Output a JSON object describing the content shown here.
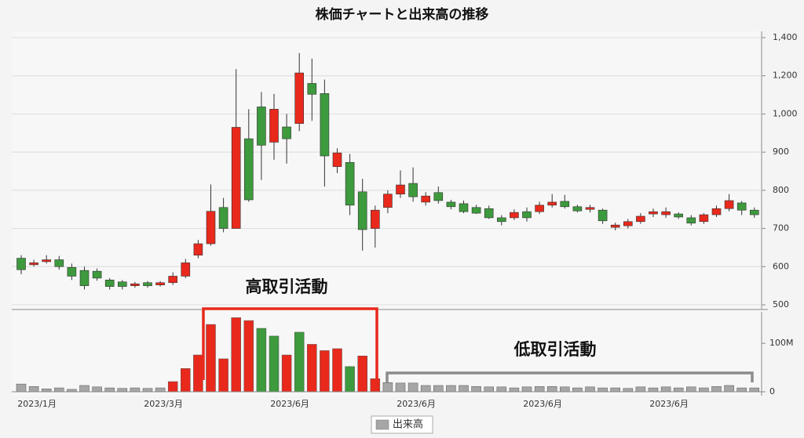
{
  "chart_data": [
    {
      "type": "candlestick",
      "title": "株価チャートと出来高の推移",
      "categories": [
        null,
        "2023/1月",
        null,
        null,
        null,
        null,
        null,
        null,
        null,
        null,
        null,
        "2023/3月",
        null,
        null,
        null,
        null,
        null,
        null,
        null,
        null,
        null,
        "2023/6月",
        null,
        null,
        null,
        null,
        null,
        null,
        null,
        null,
        null,
        "2023/6月",
        null,
        null,
        null,
        null,
        null,
        null,
        null,
        null,
        null,
        "2023/6月",
        null,
        null,
        null,
        null,
        null,
        null,
        null,
        null,
        null,
        "2023/6月",
        null,
        null,
        null,
        null,
        null,
        null,
        null
      ],
      "open": [
        622,
        605,
        613,
        618,
        598,
        590,
        588,
        565,
        560,
        550,
        558,
        552,
        558,
        575,
        630,
        660,
        755,
        700,
        935,
        1037,
        926,
        966,
        975,
        1160,
        1107,
        862,
        873,
        796,
        700,
        755,
        790,
        818,
        769,
        794,
        769,
        765,
        755,
        752,
        728,
        728,
        744,
        744,
        761,
        771,
        757,
        750,
        748,
        703,
        707,
        718,
        738,
        736,
        738,
        728,
        718,
        736,
        752,
        767,
        748
      ],
      "high": [
        630,
        618,
        630,
        628,
        608,
        600,
        595,
        570,
        565,
        560,
        562,
        562,
        585,
        620,
        670,
        815,
        780,
        1235,
        1025,
        1115,
        1105,
        1000,
        1319,
        1290,
        1180,
        910,
        895,
        830,
        760,
        800,
        852,
        860,
        795,
        810,
        775,
        773,
        762,
        760,
        735,
        750,
        755,
        770,
        790,
        788,
        762,
        762,
        752,
        715,
        725,
        740,
        752,
        755,
        742,
        735,
        740,
        760,
        790,
        772,
        755
      ],
      "low": [
        580,
        600,
        608,
        592,
        565,
        540,
        563,
        540,
        540,
        545,
        545,
        548,
        552,
        570,
        622,
        655,
        690,
        700,
        770,
        827,
        880,
        870,
        955,
        982,
        810,
        845,
        735,
        642,
        650,
        740,
        780,
        770,
        760,
        765,
        750,
        740,
        738,
        725,
        708,
        722,
        718,
        738,
        755,
        752,
        742,
        742,
        712,
        695,
        700,
        712,
        730,
        728,
        725,
        708,
        712,
        730,
        745,
        735,
        728
      ],
      "close": [
        592,
        610,
        618,
        600,
        575,
        550,
        570,
        548,
        548,
        555,
        550,
        558,
        575,
        610,
        660,
        745,
        700,
        965,
        775,
        918,
        1025,
        935,
        1215,
        1103,
        890,
        898,
        761,
        697,
        748,
        790,
        814,
        783,
        785,
        773,
        757,
        744,
        740,
        728,
        718,
        742,
        728,
        761,
        769,
        757,
        746,
        755,
        720,
        709,
        718,
        732,
        744,
        744,
        730,
        714,
        736,
        752,
        773,
        748,
        736
      ],
      "up_color": "#e8291c",
      "down_color": "#3d9a3d",
      "ylim": [
        500,
        1400
      ],
      "yticks": [
        500,
        600,
        700,
        800,
        900,
        {
          "value": 1000,
          "label": "1,000"
        },
        {
          "value": 1200,
          "label": "1,200"
        },
        {
          "value": 1400,
          "label": "1,400"
        }
      ],
      "tick_spacing": "even",
      "grid": true
    },
    {
      "type": "bar",
      "series": [
        {
          "name": "出来高",
          "color": "#a6a6a6",
          "values": [
            16000000,
            11000000,
            6000000,
            8000000,
            5000000,
            13000000,
            10000000,
            8000000,
            7000000,
            8000000,
            7000000,
            8000000,
            21000000,
            48000000,
            76000000,
            139000000,
            68000000,
            153000000,
            147000000,
            131000000,
            115000000,
            76000000,
            123000000,
            98000000,
            85000000,
            89000000,
            52000000,
            74000000,
            27000000,
            19000000,
            18000000,
            18000000,
            13000000,
            13000000,
            13000000,
            13000000,
            11000000,
            10000000,
            10000000,
            8000000,
            10000000,
            11000000,
            11000000,
            10000000,
            8000000,
            10000000,
            8000000,
            8000000,
            7000000,
            10000000,
            8000000,
            10000000,
            8000000,
            10000000,
            8000000,
            11000000,
            13000000,
            8000000,
            8000000
          ]
        }
      ],
      "bar_colors": [
        "#a6a6a6",
        "#a6a6a6",
        "#a6a6a6",
        "#a6a6a6",
        "#a6a6a6",
        "#a6a6a6",
        "#a6a6a6",
        "#a6a6a6",
        "#a6a6a6",
        "#a6a6a6",
        "#a6a6a6",
        "#a6a6a6",
        "#e8291c",
        "#e8291c",
        "#e8291c",
        "#e8291c",
        "#e8291c",
        "#e8291c",
        "#e8291c",
        "#3d9a3d",
        "#3d9a3d",
        "#e8291c",
        "#3d9a3d",
        "#e8291c",
        "#e8291c",
        "#e8291c",
        "#3d9a3d",
        "#e8291c",
        "#e8291c",
        "#a6a6a6",
        "#a6a6a6",
        "#a6a6a6",
        "#a6a6a6",
        "#a6a6a6",
        "#a6a6a6",
        "#a6a6a6",
        "#a6a6a6",
        "#a6a6a6",
        "#a6a6a6",
        "#a6a6a6",
        "#a6a6a6",
        "#a6a6a6",
        "#a6a6a6",
        "#a6a6a6",
        "#a6a6a6",
        "#a6a6a6",
        "#a6a6a6",
        "#a6a6a6",
        "#a6a6a6",
        "#a6a6a6",
        "#a6a6a6",
        "#a6a6a6",
        "#a6a6a6",
        "#a6a6a6",
        "#a6a6a6",
        "#a6a6a6",
        "#a6a6a6",
        "#a6a6a6",
        "#a6a6a6"
      ],
      "ylim": [
        0,
        165000000
      ],
      "yticks": [
        0,
        {
          "value": 100000000,
          "label": "100M"
        }
      ],
      "annotations": [
        "高取引活動",
        "低取引活動"
      ],
      "annotation_colors": [
        "#e8291c",
        "#8c8c8c"
      ],
      "legend": "bottom"
    }
  ]
}
